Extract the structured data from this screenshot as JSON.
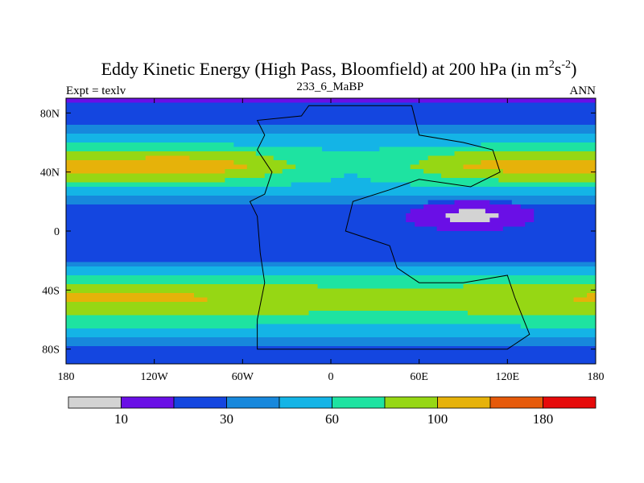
{
  "chart_data": {
    "type": "heatmap",
    "title": "Eddy Kinetic Energy (High Pass, Bloomfield) at 200 hPa (in m",
    "title_units": {
      "sup1": "2",
      "mid": "s",
      "sup2": "-2",
      "close": ")"
    },
    "left_label": "Expt = texlv",
    "center_label": "233_6_MaBP",
    "right_label": "ANN",
    "x_ticks": [
      {
        "value": -180,
        "label": "180"
      },
      {
        "value": -120,
        "label": "120W"
      },
      {
        "value": -60,
        "label": "60W"
      },
      {
        "value": 0,
        "label": "0"
      },
      {
        "value": 60,
        "label": "60E"
      },
      {
        "value": 120,
        "label": "120E"
      },
      {
        "value": 180,
        "label": "180"
      }
    ],
    "y_ticks": [
      {
        "value": 80,
        "label": "80N"
      },
      {
        "value": 40,
        "label": "40N"
      },
      {
        "value": 0,
        "label": "0"
      },
      {
        "value": -40,
        "label": "40S"
      },
      {
        "value": -80,
        "label": "80S"
      }
    ],
    "xlim": [
      -180,
      180
    ],
    "ylim": [
      -90,
      90
    ],
    "levels": [
      5,
      10,
      20,
      30,
      45,
      60,
      80,
      100,
      130,
      180
    ],
    "colorbar": {
      "colors": [
        "#d3d3d3",
        "#6a0fe6",
        "#1446e0",
        "#1788dc",
        "#14b4e6",
        "#1ee3a1",
        "#96d714",
        "#e6b20a",
        "#e65a0a",
        "#e60a0a"
      ],
      "labels": [
        {
          "boundary": 1,
          "label": "10"
        },
        {
          "boundary": 3,
          "label": "30"
        },
        {
          "boundary": 5,
          "label": "60"
        },
        {
          "boundary": 7,
          "label": "100"
        },
        {
          "boundary": 9,
          "label": "180"
        }
      ]
    },
    "field": {
      "description": "Zonal bands of eddy kinetic energy: storm-track maxima near 45N over the Pacific and near 45S in the southern ocean, minimum over the tropics with a patch below 5 over the Indian Ocean",
      "zonal_profile": [
        [
          -90,
          15
        ],
        [
          -80,
          18
        ],
        [
          -72,
          30
        ],
        [
          -62,
          50
        ],
        [
          -52,
          68
        ],
        [
          -45,
          78
        ],
        [
          -38,
          64
        ],
        [
          -28,
          40
        ],
        [
          -20,
          20
        ],
        [
          -12,
          10
        ],
        [
          0,
          11
        ],
        [
          10,
          12
        ],
        [
          20,
          22
        ],
        [
          28,
          40
        ],
        [
          36,
          60
        ],
        [
          44,
          80
        ],
        [
          52,
          62
        ],
        [
          60,
          40
        ],
        [
          68,
          24
        ],
        [
          76,
          16
        ],
        [
          84,
          11
        ],
        [
          90,
          8
        ]
      ],
      "low_patch": {
        "lon_range": [
          50,
          140
        ],
        "lat_range": [
          0,
          20
        ],
        "value": 4
      }
    },
    "continent_outline": {
      "description": "Idealized Baughman-style supercontinent outline",
      "polygon": [
        [
          0,
          85
        ],
        [
          55,
          85
        ],
        [
          60,
          65
        ],
        [
          90,
          60
        ],
        [
          110,
          55
        ],
        [
          115,
          40
        ],
        [
          95,
          30
        ],
        [
          60,
          35
        ],
        [
          40,
          28
        ],
        [
          15,
          20
        ],
        [
          10,
          0
        ],
        [
          40,
          -10
        ],
        [
          45,
          -25
        ],
        [
          60,
          -35
        ],
        [
          90,
          -35
        ],
        [
          120,
          -30
        ],
        [
          125,
          -45
        ],
        [
          135,
          -70
        ],
        [
          120,
          -80
        ],
        [
          40,
          -80
        ],
        [
          -50,
          -80
        ],
        [
          -50,
          -60
        ],
        [
          -45,
          -35
        ],
        [
          -48,
          -15
        ],
        [
          -50,
          10
        ],
        [
          -55,
          20
        ],
        [
          -45,
          25
        ],
        [
          -40,
          40
        ],
        [
          -50,
          55
        ],
        [
          -45,
          65
        ],
        [
          -50,
          75
        ],
        [
          -20,
          78
        ],
        [
          -15,
          85
        ],
        [
          0,
          85
        ]
      ]
    }
  }
}
